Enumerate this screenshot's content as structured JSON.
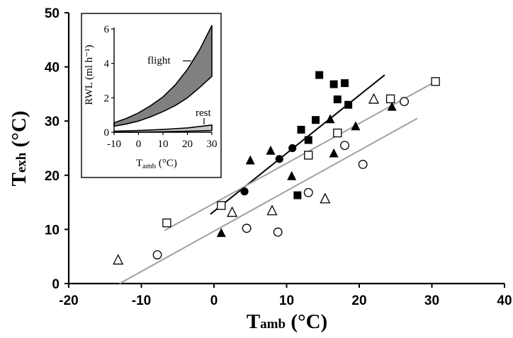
{
  "chart_data": [
    {
      "type": "scatter",
      "xlabel": {
        "main": "T",
        "sub": "amb",
        "unit": " (°C)"
      },
      "ylabel": {
        "main": "T",
        "sub": "exh",
        "unit": " (°C)"
      },
      "xlim": [
        -20,
        40
      ],
      "ylim": [
        0,
        50
      ],
      "xticks": [
        "-20",
        "-10",
        "0",
        "10",
        "20",
        "30",
        "40"
      ],
      "yticks": [
        "0",
        "10",
        "20",
        "30",
        "40",
        "50"
      ],
      "colors": {
        "regression_black": "#000000",
        "regression_gray": "#a0a0a0"
      },
      "series": [
        {
          "marker": "filled-square",
          "points": [
            [
              14.5,
              38.5
            ],
            [
              16.5,
              36.8
            ],
            [
              18,
              37
            ],
            [
              17,
              34
            ],
            [
              18.5,
              33
            ],
            [
              12,
              28.4
            ],
            [
              14,
              30.2
            ],
            [
              13,
              26.5
            ],
            [
              11.5,
              16.3
            ]
          ]
        },
        {
          "marker": "open-square",
          "points": [
            [
              -6.5,
              11.2
            ],
            [
              1,
              14.4
            ],
            [
              13,
              23.7
            ],
            [
              17,
              27.8
            ],
            [
              24.3,
              34.1
            ],
            [
              30.5,
              37.3
            ]
          ]
        },
        {
          "marker": "filled-triangle",
          "points": [
            [
              1,
              9.3
            ],
            [
              5,
              22.7
            ],
            [
              7.8,
              24.5
            ],
            [
              10.7,
              19.8
            ],
            [
              16,
              30.3
            ],
            [
              16.5,
              24
            ],
            [
              19.5,
              29
            ],
            [
              24.5,
              32.6
            ]
          ]
        },
        {
          "marker": "open-triangle",
          "points": [
            [
              -13.2,
              4.3
            ],
            [
              2.5,
              13.1
            ],
            [
              8,
              13.4
            ],
            [
              15.3,
              15.6
            ],
            [
              22,
              34
            ]
          ]
        },
        {
          "marker": "filled-circle",
          "points": [
            [
              4.2,
              17
            ],
            [
              9,
              23
            ],
            [
              10.8,
              25
            ]
          ]
        },
        {
          "marker": "open-circle",
          "points": [
            [
              -7.8,
              5.3
            ],
            [
              4.5,
              10.2
            ],
            [
              8.8,
              9.5
            ],
            [
              13,
              16.8
            ],
            [
              18,
              25.5
            ],
            [
              20.5,
              22
            ],
            [
              26.2,
              33.6
            ]
          ]
        }
      ],
      "lines": [
        {
          "color": "black",
          "x": [
            -0.5,
            23.5
          ],
          "y": [
            12.8,
            38.5
          ]
        },
        {
          "color": "gray",
          "x": [
            -6.8,
            30.5
          ],
          "y": [
            9.8,
            37.3
          ]
        },
        {
          "color": "gray",
          "x": [
            -13,
            28
          ],
          "y": [
            0,
            30.5
          ]
        }
      ]
    },
    {
      "type": "area",
      "ylabel": "RWL (ml h⁻¹)",
      "xlabel": {
        "main": "T",
        "sub": "amb",
        "unit": "  (°C)"
      },
      "xlim": [
        -10,
        30
      ],
      "ylim": [
        0,
        6
      ],
      "xticks": [
        "-10",
        "0",
        "10",
        "20",
        "30"
      ],
      "yticks": [
        "0",
        "2",
        "4",
        "6"
      ],
      "colors": {
        "flight_fill": "#808080",
        "rest_fill": "#c8c8c8"
      },
      "bands": [
        {
          "label": "flight",
          "x": [
            -10,
            -5,
            0,
            5,
            10,
            15,
            20,
            25,
            30
          ],
          "upper": [
            0.55,
            0.8,
            1.12,
            1.55,
            2.05,
            2.75,
            3.65,
            4.8,
            6.2
          ],
          "lower": [
            0.35,
            0.48,
            0.65,
            0.9,
            1.2,
            1.55,
            2.0,
            2.6,
            3.25
          ]
        },
        {
          "label": "rest",
          "x": [
            -10,
            0,
            10,
            20,
            30
          ],
          "upper": [
            0.06,
            0.1,
            0.16,
            0.25,
            0.42
          ],
          "lower": [
            0.0,
            0.01,
            0.03,
            0.06,
            0.1
          ]
        }
      ]
    }
  ]
}
